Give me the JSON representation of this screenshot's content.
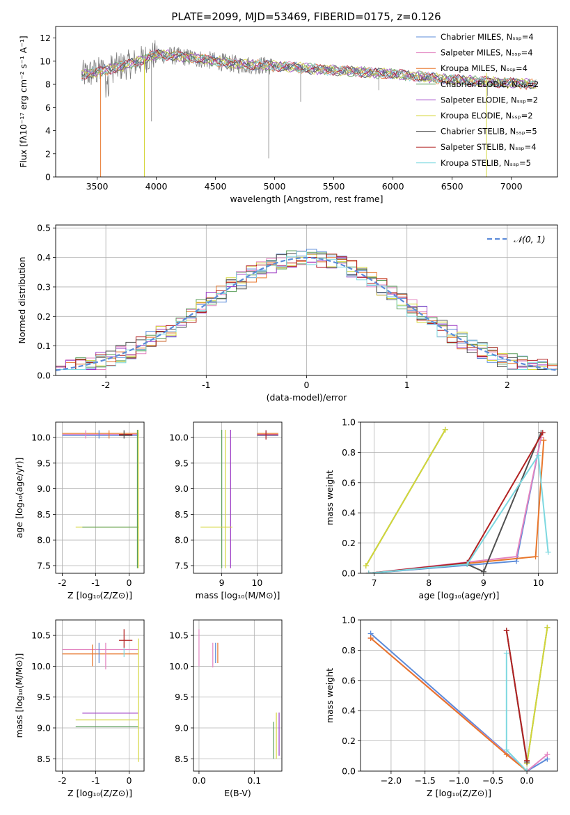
{
  "figure": {
    "title": "PLATE=2099, MJD=53469, FIBERID=0175, z=0.126"
  },
  "chart_data": [
    {
      "id": "spectrum",
      "type": "line",
      "xlabel": "wavelength [Angstrom, rest frame]",
      "ylabel": "Flux [fλ10⁻¹⁷ erg cm⁻² s⁻¹ A⁻¹]",
      "xlim": [
        3150,
        7390
      ],
      "ylim": [
        0,
        13
      ],
      "xticks": [
        3500,
        4000,
        4500,
        5000,
        5500,
        6000,
        6500,
        7000
      ],
      "yticks": [
        0,
        2,
        4,
        6,
        8,
        10,
        12
      ],
      "legend": "upper-right",
      "data_range": [
        3370,
        7210
      ],
      "continuum": [
        [
          3370,
          8.8
        ],
        [
          3600,
          9.3
        ],
        [
          3800,
          9.8
        ],
        [
          4000,
          10.6
        ],
        [
          4300,
          10.3
        ],
        [
          4700,
          9.7
        ],
        [
          5000,
          9.6
        ],
        [
          5500,
          9.2
        ],
        [
          6000,
          8.9
        ],
        [
          6500,
          8.4
        ],
        [
          7000,
          8.1
        ],
        [
          7210,
          8.0
        ]
      ],
      "series": [
        {
          "name": "Chabrier MILES, N_SSP=4",
          "color": "#5b8bd9"
        },
        {
          "name": "Salpeter MILES, N_SSP=4",
          "color": "#e384c0"
        },
        {
          "name": "Kroupa MILES, N_SSP=4",
          "color": "#e8762b"
        },
        {
          "name": "Chabrier ELODIE, N_SSP=2",
          "color": "#5a9e5a"
        },
        {
          "name": "Salpeter ELODIE, N_SSP=2",
          "color": "#9c3bc4"
        },
        {
          "name": "Kroupa ELODIE, N_SSP=2",
          "color": "#d4d63a"
        },
        {
          "name": "Chabrier STELIB, N_SSP=5",
          "color": "#505050"
        },
        {
          "name": "Salpeter STELIB, N_SSP=4",
          "color": "#b22222"
        },
        {
          "name": "Kroupa STELIB, N_SSP=5",
          "color": "#7dd8e0"
        }
      ]
    },
    {
      "id": "residuals",
      "type": "line",
      "xlabel": "(data-model)/error",
      "ylabel": "Normed distribution",
      "xlim": [
        -2.5,
        2.5
      ],
      "ylim": [
        0,
        0.51
      ],
      "xticks": [
        -2,
        -1,
        0,
        1,
        2
      ],
      "yticks": [
        0.0,
        0.1,
        0.2,
        0.3,
        0.4,
        0.5
      ],
      "legend": "upper-right",
      "legend_label": "𝒩(0, 1)",
      "gaussian": {
        "mean": 0,
        "sigma": 1
      },
      "bin_width": 0.1
    },
    {
      "id": "age-vs-Z",
      "type": "scatter",
      "xlabel": "Z [log₁₀(Z/Z⊙)]",
      "ylabel": "age  [log₁₀(age/yr)]",
      "xlim": [
        -2.2,
        0.45
      ],
      "ylim": [
        7.35,
        10.3
      ],
      "xticks": [
        -2,
        -1,
        0
      ],
      "yticks": [
        7.5,
        8.0,
        8.5,
        9.0,
        9.5,
        10.0
      ],
      "points": [
        {
          "x": [
            -2.0,
            0.28
          ],
          "y": [
            10.08,
            10.08
          ],
          "color": "#e8762b"
        },
        {
          "x": [
            -2.0,
            0.28
          ],
          "y": [
            10.06,
            10.06
          ],
          "color": "#e384c0"
        },
        {
          "x": [
            -2.0,
            0.28
          ],
          "y": [
            10.04,
            10.04
          ],
          "color": "#5b8bd9"
        },
        {
          "x": [
            -0.3,
            0.1
          ],
          "y": [
            10.04,
            10.04
          ],
          "color": "#505050"
        },
        {
          "x": [
            -0.3,
            0.1
          ],
          "y": [
            10.06,
            10.06
          ],
          "color": "#b22222"
        },
        {
          "x": [
            -1.6,
            0.28
          ],
          "y": [
            8.25,
            8.25
          ],
          "color": "#d4d63a"
        },
        {
          "x": [
            -1.4,
            0.28
          ],
          "y": [
            8.25,
            8.25
          ],
          "color": "#5a9e5a"
        }
      ]
    },
    {
      "id": "age-vs-mass",
      "type": "scatter",
      "xlabel": "mass [log₁₀(M/M⊙)]",
      "ylabel": "",
      "xlim": [
        8.2,
        10.7
      ],
      "ylim": [
        7.35,
        10.3
      ],
      "xticks": [
        9,
        10
      ],
      "yticks": [
        7.5,
        8.0,
        8.5,
        9.0,
        9.5,
        10.0
      ]
    },
    {
      "id": "weight-vs-age",
      "type": "line",
      "xlabel": "age  [log₁₀(age/yr)]",
      "ylabel": "mass weight",
      "xlim": [
        6.75,
        10.35
      ],
      "ylim": [
        0,
        1
      ],
      "xticks": [
        7,
        8,
        9,
        10
      ],
      "yticks": [
        0.0,
        0.2,
        0.4,
        0.6,
        0.8,
        1.0
      ],
      "series": [
        {
          "name": "Chabrier MILES, N_SSP=4",
          "color": "#5b8bd9",
          "x": [
            6.9,
            9.6,
            10.05
          ],
          "y": [
            0.0,
            0.08,
            0.9
          ]
        },
        {
          "name": "Salpeter MILES, N_SSP=4",
          "color": "#e384c0",
          "x": [
            6.9,
            9.6,
            10.05
          ],
          "y": [
            0.0,
            0.11,
            0.9
          ]
        },
        {
          "name": "Kroupa MILES, N_SSP=4",
          "color": "#e8762b",
          "x": [
            6.9,
            9.95,
            10.1
          ],
          "y": [
            0.0,
            0.11,
            0.88
          ]
        },
        {
          "name": "Chabrier ELODIE, N_SSP=2",
          "color": "#5a9e5a",
          "x": [
            6.85,
            8.3
          ],
          "y": [
            0.05,
            0.95
          ]
        },
        {
          "name": "Kroupa ELODIE, N_SSP=2",
          "color": "#d4d63a",
          "x": [
            6.85,
            8.3
          ],
          "y": [
            0.05,
            0.95
          ]
        },
        {
          "name": "Chabrier STELIB, N_SSP=5",
          "color": "#505050",
          "x": [
            6.9,
            8.7,
            9.0,
            10.05
          ],
          "y": [
            0.0,
            0.06,
            0.01,
            0.93
          ]
        },
        {
          "name": "Salpeter STELIB, N_SSP=4",
          "color": "#b22222",
          "x": [
            6.9,
            8.7,
            10.08
          ],
          "y": [
            0.0,
            0.07,
            0.93
          ]
        },
        {
          "name": "Kroupa STELIB, N_SSP=5",
          "color": "#7dd8e0",
          "x": [
            6.9,
            8.7,
            10.0,
            10.18
          ],
          "y": [
            0.0,
            0.06,
            0.78,
            0.14
          ]
        }
      ]
    },
    {
      "id": "mass-vs-Z",
      "type": "scatter",
      "xlabel": "Z [log₁₀(Z/Z⊙)]",
      "ylabel": "mass [log₁₀(M/M⊙)]",
      "xlim": [
        -2.2,
        0.45
      ],
      "ylim": [
        8.3,
        10.75
      ],
      "xticks": [
        -2,
        -1,
        0
      ],
      "yticks": [
        8.5,
        9.0,
        9.5,
        10.0,
        10.5
      ],
      "points": [
        {
          "x": [
            -2.0,
            0.28
          ],
          "y": [
            10.27,
            10.27
          ],
          "color": "#e384c0"
        },
        {
          "x": [
            -2.0,
            0.28
          ],
          "y": [
            10.2,
            10.2
          ],
          "color": "#e8762b"
        },
        {
          "x": [
            -0.3,
            0.1
          ],
          "y": [
            10.42,
            10.42
          ],
          "color": "#b22222"
        },
        {
          "x": [
            -1.4,
            0.28
          ],
          "y": [
            9.24,
            9.24
          ],
          "color": "#9c3bc4"
        },
        {
          "x": [
            -1.6,
            0.28
          ],
          "y": [
            9.02,
            9.02
          ],
          "color": "#5a9e5a"
        },
        {
          "x": [
            -1.6,
            0.28
          ],
          "y": [
            9.13,
            9.13
          ],
          "color": "#d4d63a"
        }
      ]
    },
    {
      "id": "mass-vs-ebv",
      "type": "scatter",
      "xlabel": "E(B-V)",
      "ylabel": "",
      "xlim": [
        -0.01,
        0.15
      ],
      "ylim": [
        8.3,
        10.75
      ],
      "xticks": [
        0.0,
        0.1
      ],
      "yticks": [
        8.5,
        9.0,
        9.5,
        10.0,
        10.5
      ]
    },
    {
      "id": "weight-vs-Z",
      "type": "line",
      "xlabel": "Z [log₁₀(Z/Z⊙)]",
      "ylabel": "mass weight",
      "xlim": [
        -2.45,
        0.45
      ],
      "ylim": [
        0,
        1
      ],
      "xticks": [
        -2.0,
        -1.5,
        -1.0,
        -0.5,
        0.0
      ],
      "yticks": [
        0.0,
        0.2,
        0.4,
        0.6,
        0.8,
        1.0
      ],
      "series": [
        {
          "name": "Chabrier MILES, N_SSP=4",
          "color": "#5b8bd9",
          "x": [
            -2.3,
            0.0,
            0.3
          ],
          "y": [
            0.91,
            0.0,
            0.08
          ]
        },
        {
          "name": "Salpeter MILES, N_SSP=4",
          "color": "#e384c0",
          "x": [
            -2.3,
            0.0,
            0.3
          ],
          "y": [
            0.88,
            0.0,
            0.11
          ]
        },
        {
          "name": "Kroupa MILES, N_SSP=4",
          "color": "#e8762b",
          "x": [
            -2.3,
            -0.3,
            0.0
          ],
          "y": [
            0.88,
            0.11,
            0.0
          ]
        },
        {
          "name": "Chabrier ELODIE, N_SSP=2",
          "color": "#5a9e5a",
          "x": [
            0.0,
            0.3
          ],
          "y": [
            0.05,
            0.95
          ]
        },
        {
          "name": "Kroupa ELODIE, N_SSP=2",
          "color": "#d4d63a",
          "x": [
            0.0,
            0.3
          ],
          "y": [
            0.05,
            0.95
          ]
        },
        {
          "name": "Chabrier STELIB, N_SSP=5",
          "color": "#505050",
          "x": [
            -0.3,
            0.0
          ],
          "y": [
            0.93,
            0.06
          ]
        },
        {
          "name": "Salpeter STELIB, N_SSP=4",
          "color": "#b22222",
          "x": [
            -0.3,
            0.0
          ],
          "y": [
            0.93,
            0.07
          ]
        },
        {
          "name": "Kroupa STELIB, N_SSP=5",
          "color": "#7dd8e0",
          "x": [
            -0.3,
            -0.3,
            0.0
          ],
          "y": [
            0.78,
            0.14,
            0.0
          ]
        }
      ]
    }
  ]
}
